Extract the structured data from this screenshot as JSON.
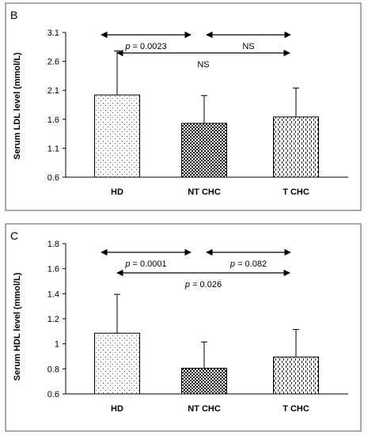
{
  "chart_data": [
    {
      "type": "bar",
      "panel_label": "B",
      "categories": [
        "HD",
        "NT CHC",
        "T CHC"
      ],
      "values": [
        2.02,
        1.53,
        1.64
      ],
      "errors": [
        0.76,
        0.48,
        0.5
      ],
      "ylabel": "Serum LDL level (mmol/L)",
      "ylim": [
        0.6,
        3.1
      ],
      "yticks": [
        "0.6",
        "1.1",
        "1.6",
        "2.1",
        "2.6",
        "3.1"
      ],
      "bar_patterns": [
        "dots-sparse",
        "checker",
        "dashes"
      ],
      "grid": false,
      "comparisons": [
        {
          "from": 0,
          "to": 1,
          "level": 0,
          "prefix": "p",
          "text": " = 0.0023"
        },
        {
          "from": 1,
          "to": 2,
          "level": 0,
          "prefix": "",
          "text": "NS"
        },
        {
          "from": 0,
          "to": 2,
          "level": 1,
          "prefix": "",
          "text": "NS"
        }
      ]
    },
    {
      "type": "bar",
      "panel_label": "C",
      "categories": [
        "HD",
        "NT CHC",
        "T CHC"
      ],
      "values": [
        1.085,
        0.805,
        0.895
      ],
      "errors": [
        0.31,
        0.21,
        0.22
      ],
      "ylabel": "Serum HDL level (mmol/L)",
      "ylim": [
        0.6,
        1.8
      ],
      "yticks": [
        "0.6",
        "0.8",
        "1",
        "1.2",
        "1.4",
        "1.6",
        "1.8"
      ],
      "bar_patterns": [
        "dots-sparse",
        "checker",
        "dashes"
      ],
      "grid": false,
      "comparisons": [
        {
          "from": 0,
          "to": 1,
          "level": 0,
          "prefix": "p",
          "text": " = 0.0001"
        },
        {
          "from": 1,
          "to": 2,
          "level": 0,
          "prefix": "p",
          "text": " = 0.082"
        },
        {
          "from": 0,
          "to": 2,
          "level": 1,
          "prefix": "p",
          "text": " = 0.026"
        }
      ]
    }
  ]
}
